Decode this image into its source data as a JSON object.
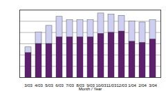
{
  "chart_data": {
    "type": "bar",
    "stacked": true,
    "grid": true,
    "tick_labels": "x",
    "x_label": "Month / Year",
    "categories": [
      "3/03",
      "4/03",
      "5/03",
      "6/03",
      "7/03",
      "8/03",
      "9/03",
      "10/03",
      "11/03",
      "12/03",
      "1/04",
      "2/04",
      "3/04"
    ],
    "series": [
      {
        "color": "#5e1f6e",
        "values": [
          2.2,
          3.0,
          3.0,
          3.6,
          3.6,
          3.6,
          3.6,
          3.9,
          4.0,
          4.1,
          3.2,
          3.1,
          3.4
        ]
      },
      {
        "color": "#cfcff2",
        "values": [
          0.5,
          1.0,
          1.6,
          1.8,
          1.5,
          1.5,
          1.5,
          1.8,
          1.6,
          1.4,
          1.8,
          1.8,
          1.7
        ]
      }
    ],
    "ylim": [
      0,
      6
    ],
    "yticks": [
      0,
      1,
      2,
      3,
      4,
      5,
      6
    ]
  }
}
